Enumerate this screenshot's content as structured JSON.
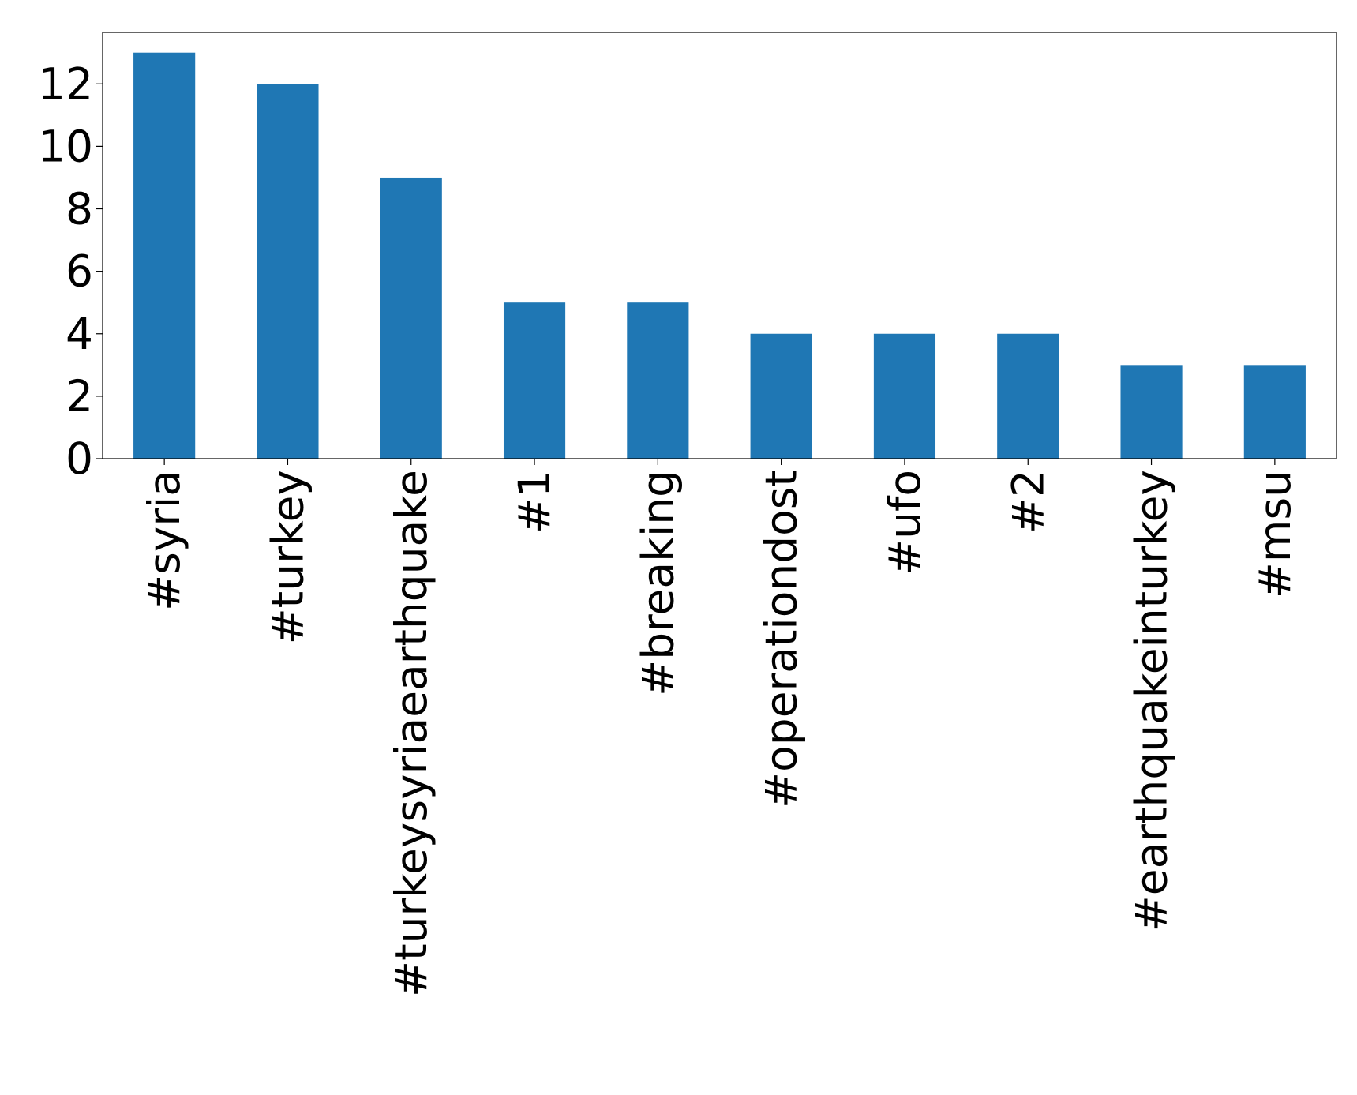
{
  "chart_data": {
    "type": "bar",
    "categories": [
      "#syria",
      "#turkey",
      "#turkeysyriaearthquake",
      "#1",
      "#breaking",
      "#operationdost",
      "#ufo",
      "#2",
      "#earthquakeinturkey",
      "#msu"
    ],
    "values": [
      13,
      12,
      9,
      5,
      5,
      4,
      4,
      4,
      3,
      3
    ],
    "color": "#1f77b4",
    "ylim": [
      0,
      13.65
    ],
    "yticks": [
      0,
      2,
      4,
      6,
      8,
      10,
      12
    ],
    "grid": false
  }
}
